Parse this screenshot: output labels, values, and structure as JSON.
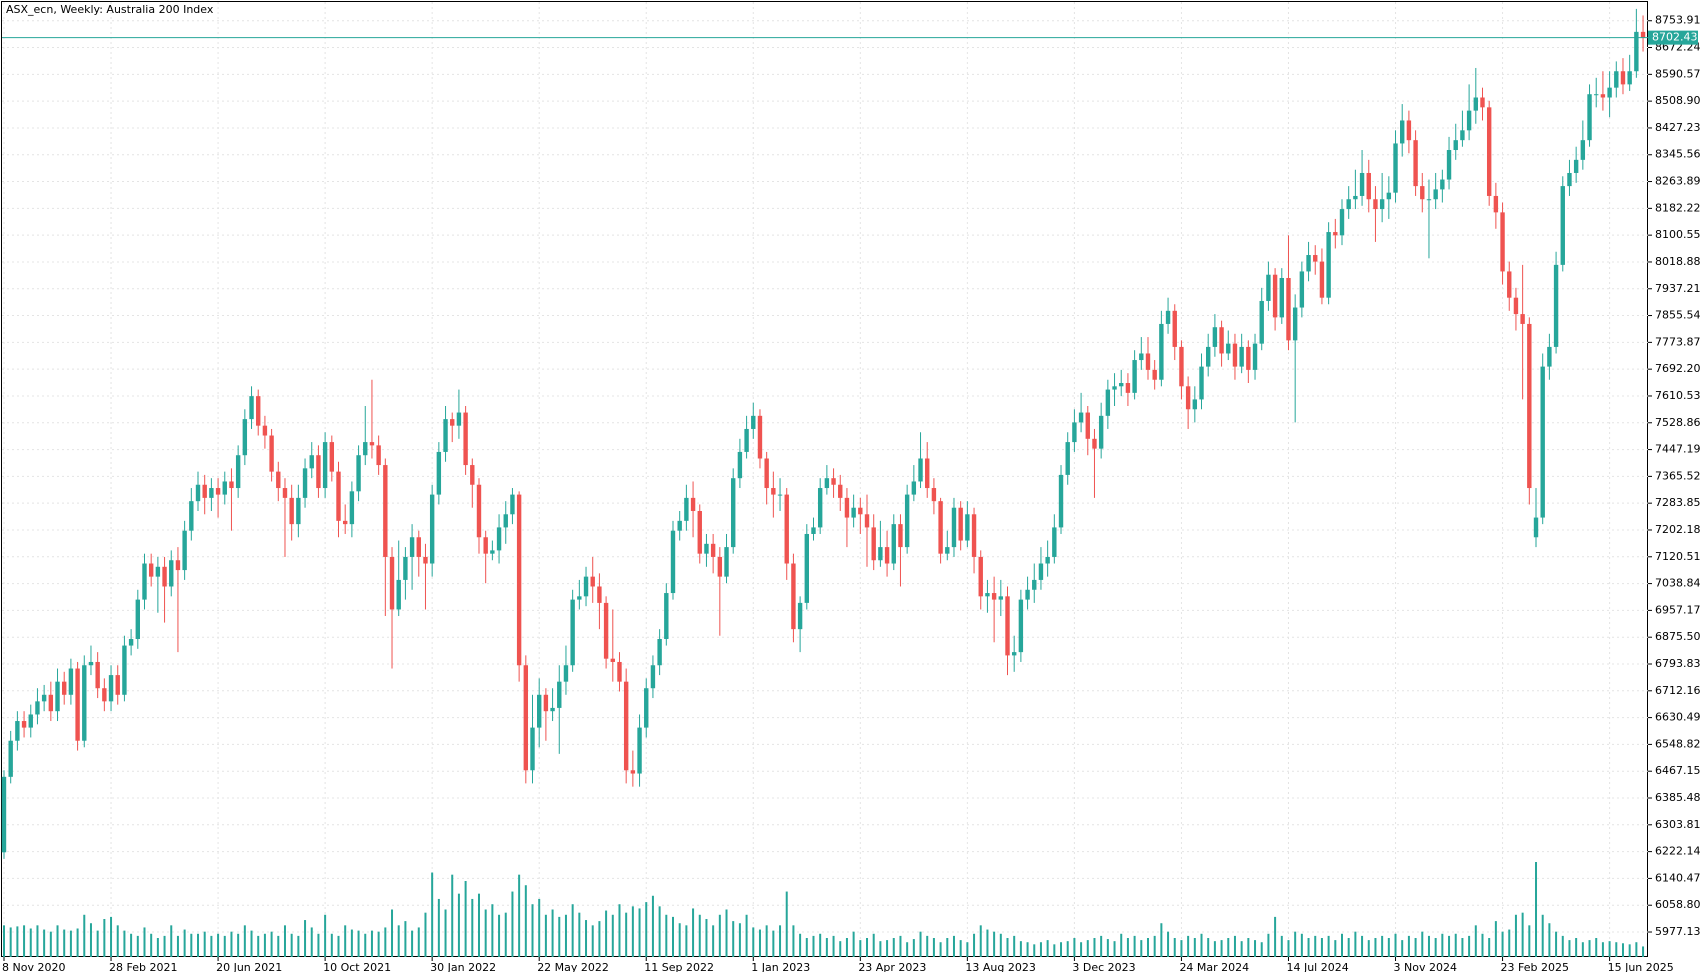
{
  "chart_data": {
    "type": "candlestick",
    "title": "ASX_ecn, Weekly:  Australia 200 Index",
    "up_color": "#26a69a",
    "down_color": "#ef5350",
    "volume_color": "#26a69a",
    "grid": true,
    "last_price": 8702.43,
    "categories": [
      "8 Nov 2020",
      null,
      null,
      null,
      null,
      null,
      null,
      null,
      null,
      null,
      null,
      null,
      null,
      null,
      null,
      null,
      "28 Feb 2021",
      null,
      null,
      null,
      null,
      null,
      null,
      null,
      null,
      null,
      null,
      null,
      null,
      null,
      null,
      null,
      "20 Jun 2021",
      null,
      null,
      null,
      null,
      null,
      null,
      null,
      null,
      null,
      null,
      null,
      null,
      null,
      null,
      null,
      "10 Oct 2021",
      null,
      null,
      null,
      null,
      null,
      null,
      null,
      null,
      null,
      null,
      null,
      null,
      null,
      null,
      null,
      "30 Jan 2022",
      null,
      null,
      null,
      null,
      null,
      null,
      null,
      null,
      null,
      null,
      null,
      null,
      null,
      null,
      null,
      "22 May 2022",
      null,
      null,
      null,
      null,
      null,
      null,
      null,
      null,
      null,
      null,
      null,
      null,
      null,
      null,
      null,
      "11 Sep 2022",
      null,
      null,
      null,
      null,
      null,
      null,
      null,
      null,
      null,
      null,
      null,
      null,
      null,
      null,
      null,
      "1 Jan 2023",
      null,
      null,
      null,
      null,
      null,
      null,
      null,
      null,
      null,
      null,
      null,
      null,
      null,
      null,
      null,
      "23 Apr 2023",
      null,
      null,
      null,
      null,
      null,
      null,
      null,
      null,
      null,
      null,
      null,
      null,
      null,
      null,
      null,
      "13 Aug 2023",
      null,
      null,
      null,
      null,
      null,
      null,
      null,
      null,
      null,
      null,
      null,
      null,
      null,
      null,
      null,
      "3 Dec 2023",
      null,
      null,
      null,
      null,
      null,
      null,
      null,
      null,
      null,
      null,
      null,
      null,
      null,
      null,
      null,
      "24 Mar 2024",
      null,
      null,
      null,
      null,
      null,
      null,
      null,
      null,
      null,
      null,
      null,
      null,
      null,
      null,
      null,
      "14 Jul 2024",
      null,
      null,
      null,
      null,
      null,
      null,
      null,
      null,
      null,
      null,
      null,
      null,
      null,
      null,
      null,
      "3 Nov 2024",
      null,
      null,
      null,
      null,
      null,
      null,
      null,
      null,
      null,
      null,
      null,
      null,
      null,
      null,
      null,
      "23 Feb 2025",
      null,
      null,
      null,
      null,
      null,
      null,
      null,
      null,
      null,
      null,
      null,
      null,
      null,
      null,
      null,
      "15 Jun 2025",
      null,
      null,
      null,
      null,
      null
    ],
    "open": [
      6220,
      6450,
      6560,
      6620,
      6600,
      6640,
      6680,
      6700,
      6650,
      6740,
      6700,
      6780,
      6560,
      6790,
      6800,
      6720,
      6680,
      6760,
      6700,
      6850,
      6870,
      6990,
      7100,
      7060,
      7090,
      7030,
      7110,
      7080,
      7200,
      7290,
      7340,
      7300,
      7330,
      7310,
      7350,
      7330,
      7430,
      7540,
      7610,
      7520,
      7490,
      7380,
      7330,
      7300,
      7220,
      7300,
      7390,
      7430,
      7330,
      7470,
      7380,
      7230,
      7220,
      7320,
      7430,
      7470,
      7460,
      7400,
      7120,
      6960,
      7050,
      7120,
      7180,
      7120,
      7100,
      7310,
      7440,
      7540,
      7520,
      7560,
      7400,
      7340,
      7180,
      7130,
      7140,
      7210,
      7250,
      7310,
      6790,
      6470,
      6600,
      6700,
      6650,
      6660,
      6740,
      6790,
      6990,
      7000,
      7060,
      7030,
      6980,
      6810,
      6800,
      6740,
      6470,
      6460,
      6600,
      6720,
      6790,
      6870,
      7010,
      7200,
      7230,
      7300,
      7260,
      7130,
      7160,
      7120,
      7060,
      7150,
      7360,
      7440,
      7510,
      7550,
      7420,
      7330,
      7310,
      7310,
      7100,
      6900,
      6980,
      7190,
      7210,
      7330,
      7360,
      7340,
      7300,
      7240,
      7270,
      7250,
      7210,
      7110,
      7150,
      7100,
      7220,
      7150,
      7310,
      7350,
      7420,
      7330,
      7290,
      7130,
      7150,
      7270,
      7170,
      7250,
      7120,
      7000,
      7010,
      6990,
      7000,
      6820,
      6830,
      6990,
      7020,
      7050,
      7100,
      7120,
      7210,
      7370,
      7470,
      7530,
      7560,
      7480,
      7450,
      7550,
      7630,
      7640,
      7650,
      7620,
      7720,
      7740,
      7690,
      7660,
      7830,
      7870,
      7760,
      7640,
      7570,
      7600,
      7700,
      7760,
      7820,
      7740,
      7770,
      7700,
      7760,
      7690,
      7770,
      7900,
      7980,
      7850,
      7970,
      7780,
      7880,
      7990,
      8040,
      8020,
      7910,
      8110,
      8100,
      8180,
      8210,
      8220,
      8290,
      8210,
      8180,
      8210,
      8230,
      8380,
      8450,
      8390,
      8250,
      8210,
      8210,
      8240,
      8270,
      8360,
      8390,
      8420,
      8480,
      8520,
      8490,
      8220,
      8170,
      7990,
      7910,
      7860,
      7830,
      7180,
      7240,
      7700,
      7760,
      8010,
      8250,
      8290,
      8330,
      8390,
      8530,
      8530,
      8520,
      8550,
      8600,
      8560,
      8600,
      8720
    ],
    "high": [
      6470,
      6590,
      6650,
      6650,
      6670,
      6720,
      6730,
      6740,
      6780,
      6770,
      6810,
      6800,
      6820,
      6850,
      6830,
      6750,
      6790,
      6790,
      6880,
      6900,
      7020,
      7130,
      7130,
      7120,
      7120,
      7140,
      7150,
      7230,
      7330,
      7380,
      7370,
      7360,
      7360,
      7380,
      7390,
      7460,
      7570,
      7640,
      7630,
      7550,
      7510,
      7410,
      7360,
      7340,
      7340,
      7420,
      7470,
      7460,
      7500,
      7490,
      7410,
      7280,
      7350,
      7460,
      7580,
      7660,
      7490,
      7420,
      7150,
      7170,
      7150,
      7220,
      7200,
      7160,
      7340,
      7470,
      7580,
      7560,
      7630,
      7580,
      7420,
      7360,
      7200,
      7170,
      7250,
      7290,
      7330,
      7320,
      6820,
      6700,
      6750,
      6720,
      6720,
      6790,
      6850,
      7020,
      7050,
      7090,
      7120,
      7070,
      7000,
      6960,
      6830,
      6780,
      6530,
      6640,
      6750,
      6820,
      6900,
      7040,
      7230,
      7260,
      7340,
      7350,
      7280,
      7190,
      7190,
      7150,
      7190,
      7390,
      7480,
      7550,
      7590,
      7570,
      7440,
      7380,
      7360,
      7330,
      7130,
      7000,
      7220,
      7240,
      7360,
      7400,
      7390,
      7370,
      7330,
      7310,
      7300,
      7310,
      7250,
      7230,
      7200,
      7250,
      7250,
      7340,
      7400,
      7500,
      7470,
      7360,
      7300,
      7200,
      7300,
      7290,
      7290,
      7270,
      7140,
      7050,
      7060,
      7050,
      7030,
      6880,
      7020,
      7060,
      7100,
      7150,
      7170,
      7250,
      7400,
      7500,
      7570,
      7620,
      7580,
      7510,
      7590,
      7660,
      7680,
      7690,
      7680,
      7750,
      7790,
      7790,
      7720,
      7870,
      7910,
      7890,
      7780,
      7670,
      7640,
      7740,
      7800,
      7860,
      7840,
      7810,
      7800,
      7800,
      7780,
      7800,
      7940,
      8020,
      8000,
      8000,
      8100,
      7920,
      8020,
      8080,
      8070,
      8060,
      8140,
      8150,
      8210,
      8250,
      8300,
      8360,
      8330,
      8250,
      8290,
      8280,
      8420,
      8500,
      8480,
      8420,
      8290,
      8270,
      8290,
      8300,
      8400,
      8440,
      8480,
      8560,
      8610,
      8550,
      8510,
      8260,
      8200,
      8020,
      7940,
      8010,
      7850,
      7330,
      7740,
      7800,
      8050,
      8280,
      8330,
      8370,
      8450,
      8560,
      8580,
      8600,
      8600,
      8630,
      8640,
      8650,
      8790,
      8770
    ],
    "low": [
      6200,
      6430,
      6530,
      6570,
      6570,
      6610,
      6650,
      6620,
      6620,
      6670,
      6670,
      6530,
      6540,
      6760,
      6690,
      6650,
      6650,
      6670,
      6680,
      6820,
      6840,
      6960,
      7030,
      6950,
      6920,
      7000,
      6830,
      7050,
      7170,
      7260,
      7250,
      7260,
      7240,
      7280,
      7200,
      7300,
      7400,
      7510,
      7490,
      7450,
      7350,
      7290,
      7120,
      7170,
      7180,
      7270,
      7360,
      7300,
      7300,
      7350,
      7180,
      7190,
      7180,
      7290,
      7400,
      7420,
      7370,
      6940,
      6780,
      6940,
      6990,
      7020,
      7060,
      6960,
      7060,
      7280,
      7410,
      7470,
      7480,
      7370,
      7270,
      7130,
      7040,
      7110,
      7100,
      7160,
      7220,
      6740,
      6430,
      6430,
      6540,
      6560,
      6620,
      6520,
      6700,
      6770,
      6960,
      6970,
      6980,
      6900,
      6780,
      6740,
      6710,
      6430,
      6420,
      6420,
      6570,
      6690,
      6760,
      6850,
      6990,
      7170,
      7200,
      7180,
      7100,
      7090,
      7070,
      6880,
      7040,
      7130,
      7330,
      7420,
      7480,
      7390,
      7280,
      7240,
      7260,
      7050,
      6860,
      6830,
      6960,
      7170,
      7190,
      7310,
      7300,
      7260,
      7150,
      7210,
      7190,
      7090,
      7080,
      7090,
      7060,
      7080,
      7030,
      7130,
      7290,
      7330,
      7300,
      7250,
      7100,
      7110,
      7120,
      7140,
      7150,
      7070,
      6960,
      6950,
      6860,
      6940,
      6760,
      6770,
      6800,
      6960,
      6980,
      7020,
      7060,
      7100,
      7190,
      7340,
      7440,
      7500,
      7430,
      7300,
      7420,
      7510,
      7580,
      7610,
      7580,
      7600,
      7690,
      7660,
      7630,
      7640,
      7800,
      7720,
      7600,
      7510,
      7530,
      7570,
      7670,
      7730,
      7700,
      7720,
      7660,
      7680,
      7650,
      7660,
      7750,
      7870,
      7810,
      7830,
      7750,
      7530,
      7850,
      7960,
      7980,
      7890,
      7890,
      8060,
      8070,
      8150,
      8180,
      8190,
      8170,
      8080,
      8140,
      8150,
      8200,
      8340,
      8350,
      8220,
      8170,
      8030,
      8180,
      8200,
      8240,
      8330,
      8370,
      8390,
      8440,
      8450,
      8190,
      8120,
      7950,
      7870,
      7810,
      7600,
      7280,
      7150,
      7220,
      7660,
      7740,
      7990,
      8220,
      8260,
      8300,
      8370,
      8490,
      8480,
      8460,
      8520,
      8530,
      8540,
      8580,
      8660
    ],
    "close": [
      6450,
      6560,
      6620,
      6600,
      6640,
      6680,
      6700,
      6650,
      6740,
      6700,
      6780,
      6560,
      6790,
      6800,
      6720,
      6680,
      6760,
      6700,
      6850,
      6870,
      6990,
      7100,
      7060,
      7090,
      7030,
      7110,
      7080,
      7200,
      7290,
      7340,
      7300,
      7330,
      7310,
      7350,
      7330,
      7430,
      7540,
      7610,
      7520,
      7490,
      7380,
      7330,
      7300,
      7220,
      7300,
      7390,
      7430,
      7330,
      7470,
      7380,
      7230,
      7220,
      7320,
      7430,
      7470,
      7460,
      7400,
      7120,
      6960,
      7050,
      7120,
      7180,
      7120,
      7100,
      7310,
      7440,
      7540,
      7520,
      7560,
      7400,
      7340,
      7180,
      7130,
      7140,
      7210,
      7250,
      7310,
      6790,
      6470,
      6600,
      6700,
      6650,
      6660,
      6740,
      6790,
      6990,
      7000,
      7060,
      7030,
      6980,
      6810,
      6800,
      6740,
      6470,
      6460,
      6600,
      6720,
      6790,
      6870,
      7010,
      7200,
      7230,
      7300,
      7260,
      7130,
      7160,
      7120,
      7060,
      7150,
      7360,
      7440,
      7510,
      7550,
      7420,
      7330,
      7310,
      7310,
      7100,
      6900,
      6980,
      7190,
      7210,
      7330,
      7360,
      7340,
      7300,
      7240,
      7270,
      7250,
      7210,
      7110,
      7150,
      7100,
      7220,
      7150,
      7310,
      7350,
      7420,
      7330,
      7290,
      7130,
      7150,
      7270,
      7170,
      7250,
      7120,
      7000,
      7010,
      6990,
      7000,
      6820,
      6830,
      6990,
      7020,
      7050,
      7100,
      7120,
      7210,
      7370,
      7470,
      7530,
      7560,
      7480,
      7450,
      7550,
      7630,
      7640,
      7650,
      7620,
      7720,
      7740,
      7690,
      7660,
      7830,
      7870,
      7760,
      7640,
      7570,
      7600,
      7700,
      7760,
      7820,
      7740,
      7770,
      7700,
      7760,
      7690,
      7770,
      7900,
      7980,
      7850,
      7970,
      7780,
      7880,
      7990,
      8040,
      8020,
      7910,
      8110,
      8100,
      8180,
      8210,
      8220,
      8290,
      8210,
      8180,
      8210,
      8230,
      8380,
      8450,
      8390,
      8250,
      8210,
      8210,
      8240,
      8270,
      8360,
      8390,
      8420,
      8480,
      8520,
      8490,
      8220,
      8170,
      7990,
      7910,
      7860,
      7830,
      7330,
      7240,
      7700,
      7760,
      8010,
      8250,
      8290,
      8330,
      8390,
      8530,
      8530,
      8520,
      8550,
      8600,
      8560,
      8600,
      8720,
      8702.43
    ],
    "volume": [
      30,
      28,
      29,
      30,
      27,
      30,
      26,
      24,
      30,
      26,
      25,
      27,
      40,
      32,
      25,
      36,
      38,
      30,
      25,
      22,
      20,
      28,
      22,
      18,
      20,
      30,
      20,
      26,
      22,
      22,
      24,
      20,
      22,
      20,
      24,
      22,
      30,
      25,
      20,
      22,
      24,
      20,
      30,
      22,
      20,
      35,
      28,
      22,
      40,
      22,
      20,
      30,
      26,
      25,
      22,
      25,
      24,
      28,
      45,
      30,
      34,
      25,
      28,
      42,
      80,
      55,
      45,
      78,
      60,
      72,
      55,
      60,
      45,
      50,
      40,
      42,
      62,
      78,
      68,
      50,
      55,
      40,
      45,
      38,
      40,
      50,
      42,
      35,
      30,
      34,
      44,
      40,
      50,
      42,
      48,
      46,
      52,
      58,
      48,
      40,
      38,
      32,
      30,
      46,
      40,
      36,
      30,
      40,
      45,
      34,
      32,
      40,
      28,
      26,
      30,
      25,
      30,
      62,
      30,
      22,
      18,
      20,
      22,
      18,
      20,
      15,
      18,
      24,
      16,
      18,
      22,
      15,
      16,
      18,
      20,
      14,
      17,
      24,
      20,
      18,
      14,
      18,
      20,
      16,
      14,
      22,
      30,
      26,
      24,
      22,
      18,
      20,
      15,
      14,
      12,
      14,
      16,
      12,
      14,
      15,
      18,
      14,
      16,
      18,
      20,
      17,
      15,
      22,
      18,
      20,
      16,
      18,
      20,
      32,
      24,
      18,
      16,
      20,
      18,
      22,
      18,
      15,
      16,
      18,
      20,
      15,
      18,
      16,
      14,
      22,
      38,
      20,
      16,
      24,
      22,
      18,
      20,
      18,
      20,
      16,
      22,
      18,
      24,
      20,
      16,
      18,
      20,
      18,
      22,
      16,
      20,
      18,
      24,
      20,
      18,
      22,
      20,
      22,
      18,
      20,
      30,
      22,
      18,
      34,
      24,
      26,
      40,
      42,
      30,
      90,
      40,
      32,
      24,
      20,
      16,
      18,
      14,
      16,
      18,
      14,
      15,
      14,
      13,
      12,
      14,
      10
    ],
    "ylim": [
      5901,
      8811
    ],
    "yticks": [
      8753.91,
      8672.24,
      8590.57,
      {
        "value": 8508.9,
        "label": "8508.90"
      },
      8427.23,
      8345.56,
      8263.89,
      8182.22,
      8100.55,
      8018.88,
      7937.21,
      7855.54,
      7773.87,
      {
        "value": 7692.2,
        "label": "7692.20"
      },
      7610.53,
      7528.86,
      7447.19,
      7365.52,
      7283.85,
      7202.18,
      7120.51,
      7038.84,
      6957.17,
      {
        "value": 6875.5,
        "label": "6875.50"
      },
      6793.83,
      6712.16,
      6630.49,
      6548.82,
      6467.15,
      6385.48,
      6303.81,
      6222.14,
      6140.47,
      {
        "value": 6058.8,
        "label": "6058.80"
      },
      5977.13
    ]
  }
}
